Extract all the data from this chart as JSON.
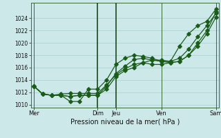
{
  "xlabel": "Pression niveau de la mer( hPa )",
  "bg_color": "#cce8e8",
  "grid_color": "#aacece",
  "line_color": "#1a5c1a",
  "ylim": [
    1009.5,
    1026.5
  ],
  "yticks": [
    1010,
    1012,
    1014,
    1016,
    1018,
    1020,
    1022,
    1024
  ],
  "xlim": [
    -0.3,
    20.3
  ],
  "xtick_labels": [
    "Mer",
    "Dim",
    "Jeu",
    "Ven",
    "Sam"
  ],
  "xtick_positions": [
    0,
    7,
    9,
    14,
    20
  ],
  "vlines_thick": [
    7,
    9
  ],
  "vlines_thin": [
    0,
    14,
    20
  ],
  "series1_x": [
    0,
    1,
    2,
    3,
    4,
    5,
    6,
    7,
    8,
    9,
    10,
    11,
    12,
    13,
    14,
    15,
    16,
    17,
    18,
    19,
    20
  ],
  "series1": [
    1013.0,
    1011.7,
    1011.5,
    1011.5,
    1011.3,
    1011.5,
    1011.5,
    1011.5,
    1012.5,
    1014.5,
    1015.5,
    1016.0,
    1016.8,
    1017.2,
    1017.2,
    1017.0,
    1017.5,
    1019.0,
    1021.0,
    1022.8,
    1024.8
  ],
  "series2": [
    1013.0,
    1011.7,
    1011.5,
    1011.5,
    1011.3,
    1011.5,
    1011.5,
    1011.5,
    1013.0,
    1015.0,
    1016.2,
    1017.3,
    1017.5,
    1017.2,
    1017.0,
    1016.8,
    1017.0,
    1018.0,
    1019.5,
    1021.5,
    1024.2
  ],
  "series3": [
    1013.0,
    1011.7,
    1011.5,
    1011.7,
    1011.8,
    1011.8,
    1011.8,
    1011.8,
    1013.2,
    1014.8,
    1015.8,
    1016.5,
    1016.8,
    1016.5,
    1016.5,
    1016.8,
    1017.0,
    1018.0,
    1020.0,
    1022.0,
    1025.0
  ],
  "series4": [
    1013.0,
    1011.7,
    1011.5,
    1011.5,
    1010.5,
    1010.5,
    1012.5,
    1012.5,
    1014.0,
    1016.5,
    1017.5,
    1018.0,
    1017.8,
    1017.5,
    1017.0,
    1017.0,
    1019.5,
    1021.5,
    1022.8,
    1023.5,
    1025.5
  ]
}
